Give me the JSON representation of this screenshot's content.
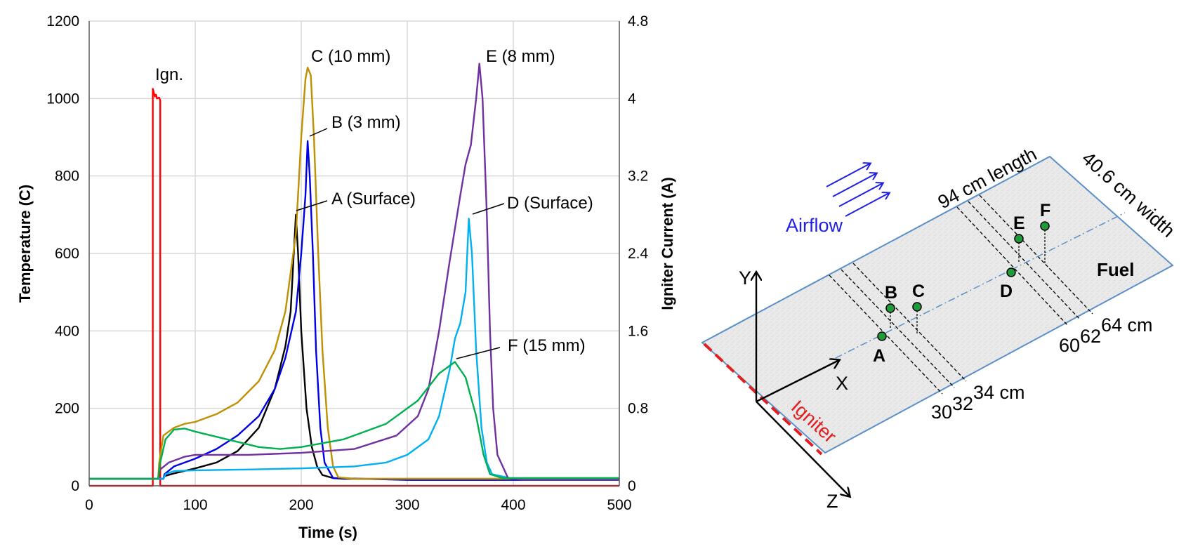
{
  "chart_data": [
    {
      "type": "line",
      "xlabel": "Time (s)",
      "ylabel": "Temperature (C)",
      "y2label": "Igniter Current (A)",
      "xlim": [
        0,
        500
      ],
      "ylim": [
        0,
        1200
      ],
      "y2lim": [
        0,
        4.8
      ],
      "x_ticks": [
        "0",
        "100",
        "200",
        "300",
        "400",
        "500"
      ],
      "y_ticks": [
        "0",
        "200",
        "400",
        "600",
        "800",
        "1000",
        "1200"
      ],
      "y2_ticks": [
        "0",
        "0.8",
        "1.6",
        "2.4",
        "3.2",
        "4",
        "4.8"
      ],
      "grid": true,
      "annotations": {
        "ign": "Ign.",
        "c": "C (10 mm)",
        "b": "B (3 mm)",
        "a": "A (Surface)",
        "e": "E (8 mm)",
        "d": "D (Surface)",
        "f": "F (15 mm)"
      },
      "series": [
        {
          "name": "Ign.",
          "axis": "y2",
          "color": "#ff0000",
          "points": [
            [
              0,
              0
            ],
            [
              60,
              0
            ],
            [
              60,
              4.1
            ],
            [
              62,
              4.02
            ],
            [
              63,
              4.04
            ],
            [
              64,
              4.0
            ],
            [
              66,
              4.01
            ],
            [
              67,
              3.98
            ],
            [
              67,
              0
            ],
            [
              500,
              0
            ]
          ]
        },
        {
          "name": "A (Surface)",
          "axis": "y1",
          "color": "#000000",
          "points": [
            [
              0,
              18
            ],
            [
              60,
              18
            ],
            [
              70,
              18
            ],
            [
              71,
              25
            ],
            [
              80,
              32
            ],
            [
              100,
              45
            ],
            [
              120,
              60
            ],
            [
              140,
              90
            ],
            [
              160,
              150
            ],
            [
              175,
              250
            ],
            [
              185,
              360
            ],
            [
              190,
              450
            ],
            [
              193,
              600
            ],
            [
              195,
              700
            ],
            [
              197,
              600
            ],
            [
              200,
              400
            ],
            [
              205,
              200
            ],
            [
              210,
              100
            ],
            [
              215,
              50
            ],
            [
              220,
              28
            ],
            [
              230,
              20
            ],
            [
              240,
              18
            ],
            [
              500,
              18
            ]
          ]
        },
        {
          "name": "B (3 mm)",
          "axis": "y1",
          "color": "#0000e6",
          "points": [
            [
              0,
              18
            ],
            [
              70,
              18
            ],
            [
              71,
              30
            ],
            [
              80,
              50
            ],
            [
              100,
              70
            ],
            [
              120,
              95
            ],
            [
              140,
              130
            ],
            [
              160,
              180
            ],
            [
              175,
              250
            ],
            [
              185,
              330
            ],
            [
              195,
              450
            ],
            [
              200,
              600
            ],
            [
              204,
              750
            ],
            [
              206,
              890
            ],
            [
              208,
              800
            ],
            [
              211,
              600
            ],
            [
              214,
              350
            ],
            [
              218,
              150
            ],
            [
              222,
              60
            ],
            [
              230,
              20
            ],
            [
              300,
              15
            ],
            [
              500,
              15
            ]
          ]
        },
        {
          "name": "C (10 mm)",
          "axis": "y1",
          "color": "#bf9000",
          "points": [
            [
              0,
              18
            ],
            [
              65,
              18
            ],
            [
              66,
              60
            ],
            [
              70,
              130
            ],
            [
              80,
              150
            ],
            [
              90,
              160
            ],
            [
              100,
              165
            ],
            [
              120,
              185
            ],
            [
              140,
              215
            ],
            [
              160,
              270
            ],
            [
              175,
              350
            ],
            [
              185,
              450
            ],
            [
              195,
              650
            ],
            [
              200,
              900
            ],
            [
              204,
              1050
            ],
            [
              206,
              1080
            ],
            [
              209,
              1060
            ],
            [
              212,
              900
            ],
            [
              216,
              600
            ],
            [
              220,
              350
            ],
            [
              225,
              150
            ],
            [
              230,
              50
            ],
            [
              235,
              22
            ],
            [
              250,
              18
            ],
            [
              500,
              18
            ]
          ]
        },
        {
          "name": "D (Surface)",
          "axis": "y1",
          "color": "#00b0f0",
          "points": [
            [
              0,
              18
            ],
            [
              70,
              18
            ],
            [
              72,
              30
            ],
            [
              80,
              38
            ],
            [
              100,
              40
            ],
            [
              150,
              42
            ],
            [
              200,
              45
            ],
            [
              250,
              50
            ],
            [
              280,
              60
            ],
            [
              300,
              80
            ],
            [
              320,
              120
            ],
            [
              330,
              180
            ],
            [
              340,
              300
            ],
            [
              345,
              380
            ],
            [
              350,
              420
            ],
            [
              355,
              500
            ],
            [
              358,
              690
            ],
            [
              361,
              600
            ],
            [
              365,
              350
            ],
            [
              370,
              150
            ],
            [
              375,
              60
            ],
            [
              380,
              30
            ],
            [
              400,
              18
            ],
            [
              500,
              18
            ]
          ]
        },
        {
          "name": "E (8 mm)",
          "axis": "y1",
          "color": "#7030a0",
          "points": [
            [
              0,
              18
            ],
            [
              65,
              18
            ],
            [
              66,
              40
            ],
            [
              75,
              60
            ],
            [
              90,
              75
            ],
            [
              100,
              80
            ],
            [
              150,
              80
            ],
            [
              200,
              85
            ],
            [
              250,
              95
            ],
            [
              290,
              130
            ],
            [
              310,
              180
            ],
            [
              320,
              250
            ],
            [
              330,
              400
            ],
            [
              340,
              580
            ],
            [
              350,
              750
            ],
            [
              355,
              830
            ],
            [
              360,
              880
            ],
            [
              365,
              1000
            ],
            [
              368,
              1090
            ],
            [
              371,
              1000
            ],
            [
              375,
              700
            ],
            [
              378,
              400
            ],
            [
              381,
              200
            ],
            [
              385,
              80
            ],
            [
              395,
              20
            ],
            [
              410,
              15
            ],
            [
              500,
              15
            ]
          ]
        },
        {
          "name": "F (15 mm)",
          "axis": "y1",
          "color": "#00b050",
          "points": [
            [
              0,
              18
            ],
            [
              65,
              18
            ],
            [
              67,
              60
            ],
            [
              72,
              120
            ],
            [
              80,
              145
            ],
            [
              90,
              148
            ],
            [
              100,
              140
            ],
            [
              130,
              120
            ],
            [
              160,
              100
            ],
            [
              180,
              95
            ],
            [
              200,
              100
            ],
            [
              240,
              120
            ],
            [
              280,
              160
            ],
            [
              310,
              220
            ],
            [
              330,
              290
            ],
            [
              345,
              320
            ],
            [
              355,
              280
            ],
            [
              365,
              180
            ],
            [
              372,
              80
            ],
            [
              378,
              30
            ],
            [
              390,
              20
            ],
            [
              500,
              20
            ]
          ]
        }
      ]
    }
  ],
  "diagram": {
    "airflow": "Airflow",
    "length_label": "94 cm length",
    "width_label": "40.6 cm width",
    "fuel": "Fuel",
    "igniter": "Igniter",
    "axis_x": "X",
    "axis_y": "Y",
    "axis_z": "Z",
    "points": [
      "A",
      "B",
      "C",
      "D",
      "E",
      "F"
    ],
    "marks_near": [
      "30",
      "32",
      "34 cm"
    ],
    "marks_far": [
      "60",
      "62",
      "64 cm"
    ],
    "colors": {
      "plate_fill": "#e9e9e9",
      "plate_edge": "#5b8fc7",
      "airflow": "#1f1fe6",
      "igniter": "#e02020",
      "point": "#1f9c3a"
    }
  }
}
